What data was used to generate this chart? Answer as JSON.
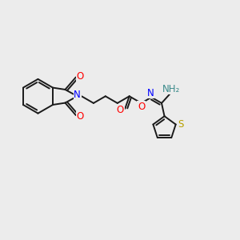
{
  "bg_color": "#ececec",
  "bond_color": "#1a1a1a",
  "N_color": "#0000ff",
  "O_color": "#ff0000",
  "S_color": "#b8a000",
  "NH_color": "#3a8a8a",
  "line_width": 1.4,
  "font_size_atom": 8.5,
  "xlim": [
    0,
    10
  ],
  "ylim": [
    0,
    10
  ]
}
